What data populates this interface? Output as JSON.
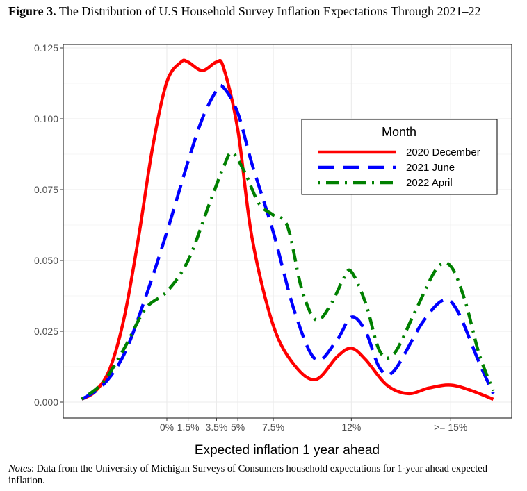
{
  "figure": {
    "label": "Figure 3.",
    "title": "The Distribution of U.S Household Survey Inflation Expectations Through 2021–22"
  },
  "notes": {
    "label": "Notes",
    "text": ": Data from the University of Michigan Surveys of Consumers household expectations for 1-year ahead expected inflation."
  },
  "chart_data": {
    "type": "line",
    "xlabel": "Expected inflation 1 year ahead",
    "ylabel": "",
    "x_ticks": [
      "0%",
      "1.5%",
      "3.5%",
      "5%",
      "7.5%",
      "12%",
      ">= 15%"
    ],
    "y_ticks": [
      "0.000",
      "0.025",
      "0.050",
      "0.075",
      "0.100",
      "0.125"
    ],
    "ylim": [
      0,
      0.125
    ],
    "grid": true,
    "legend": {
      "title": "Month",
      "position": "top-right"
    },
    "series": [
      {
        "name": "2020 December",
        "color": "#ff0000",
        "style": "solid",
        "points": [
          [
            -6.0,
            0.001
          ],
          [
            -5.0,
            0.004
          ],
          [
            -4.0,
            0.012
          ],
          [
            -3.0,
            0.03
          ],
          [
            -2.0,
            0.058
          ],
          [
            -1.0,
            0.09
          ],
          [
            0.0,
            0.113
          ],
          [
            1.0,
            0.12
          ],
          [
            1.5,
            0.12
          ],
          [
            2.5,
            0.117
          ],
          [
            3.5,
            0.12
          ],
          [
            4.0,
            0.118
          ],
          [
            5.0,
            0.096
          ],
          [
            6.0,
            0.058
          ],
          [
            7.5,
            0.027
          ],
          [
            9.0,
            0.013
          ],
          [
            10.5,
            0.008
          ],
          [
            12.0,
            0.016
          ],
          [
            13.0,
            0.019
          ],
          [
            14.0,
            0.015
          ],
          [
            15.5,
            0.006
          ],
          [
            17.0,
            0.003
          ],
          [
            18.5,
            0.005
          ],
          [
            20.0,
            0.006
          ],
          [
            21.5,
            0.004
          ],
          [
            23.0,
            0.001
          ]
        ]
      },
      {
        "name": "2021 June",
        "color": "#0000ff",
        "style": "dashed",
        "points": [
          [
            -6.0,
            0.001
          ],
          [
            -4.5,
            0.006
          ],
          [
            -3.0,
            0.017
          ],
          [
            -1.5,
            0.037
          ],
          [
            0.0,
            0.06
          ],
          [
            1.5,
            0.085
          ],
          [
            2.5,
            0.1
          ],
          [
            3.5,
            0.11
          ],
          [
            4.0,
            0.111
          ],
          [
            5.0,
            0.102
          ],
          [
            6.0,
            0.084
          ],
          [
            7.5,
            0.06
          ],
          [
            9.0,
            0.032
          ],
          [
            10.5,
            0.015
          ],
          [
            12.0,
            0.022
          ],
          [
            13.0,
            0.03
          ],
          [
            14.0,
            0.025
          ],
          [
            15.0,
            0.012
          ],
          [
            16.0,
            0.011
          ],
          [
            18.0,
            0.028
          ],
          [
            19.5,
            0.036
          ],
          [
            20.5,
            0.032
          ],
          [
            22.0,
            0.014
          ],
          [
            23.0,
            0.003
          ]
        ]
      },
      {
        "name": "2022 April",
        "color": "#008000",
        "style": "dotdash",
        "points": [
          [
            -6.0,
            0.001
          ],
          [
            -4.5,
            0.007
          ],
          [
            -3.0,
            0.019
          ],
          [
            -1.5,
            0.033
          ],
          [
            0.0,
            0.039
          ],
          [
            1.5,
            0.05
          ],
          [
            3.0,
            0.07
          ],
          [
            4.0,
            0.083
          ],
          [
            4.6,
            0.088
          ],
          [
            5.5,
            0.081
          ],
          [
            6.5,
            0.07
          ],
          [
            7.5,
            0.066
          ],
          [
            8.5,
            0.062
          ],
          [
            9.5,
            0.04
          ],
          [
            10.5,
            0.029
          ],
          [
            11.5,
            0.034
          ],
          [
            12.5,
            0.044
          ],
          [
            13.0,
            0.046
          ],
          [
            14.0,
            0.035
          ],
          [
            15.0,
            0.018
          ],
          [
            16.0,
            0.017
          ],
          [
            17.5,
            0.032
          ],
          [
            19.0,
            0.047
          ],
          [
            20.0,
            0.048
          ],
          [
            21.0,
            0.036
          ],
          [
            22.0,
            0.017
          ],
          [
            23.0,
            0.004
          ]
        ]
      }
    ]
  }
}
